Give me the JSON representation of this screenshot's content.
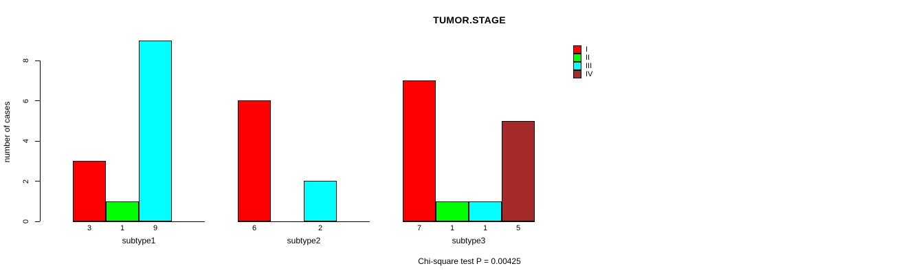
{
  "chart_data": {
    "type": "bar",
    "title": "TUMOR.STAGE",
    "ylabel": "number of cases",
    "ylim": [
      0,
      8
    ],
    "yticks": [
      0,
      2,
      4,
      6,
      8
    ],
    "grid": false,
    "legend_position": "right",
    "stages": [
      "I",
      "II",
      "III",
      "IV"
    ],
    "colors": [
      "#FF0000",
      "#00FF00",
      "#00FFFF",
      "#A52A2A"
    ],
    "categories": [
      "subtype1",
      "subtype2",
      "subtype3"
    ],
    "groups": [
      {
        "label": "subtype1",
        "values": [
          3,
          1,
          9,
          0
        ],
        "shown_value_labels": [
          "3",
          "1",
          "9"
        ]
      },
      {
        "label": "subtype2",
        "values": [
          6,
          0,
          2,
          0
        ],
        "shown_value_labels": [
          "6",
          "2"
        ]
      },
      {
        "label": "subtype3",
        "values": [
          7,
          1,
          1,
          5
        ],
        "shown_value_labels": [
          "7",
          "1",
          "1",
          "5"
        ]
      }
    ],
    "annotation": "Chi-square test P = 0.00425"
  }
}
